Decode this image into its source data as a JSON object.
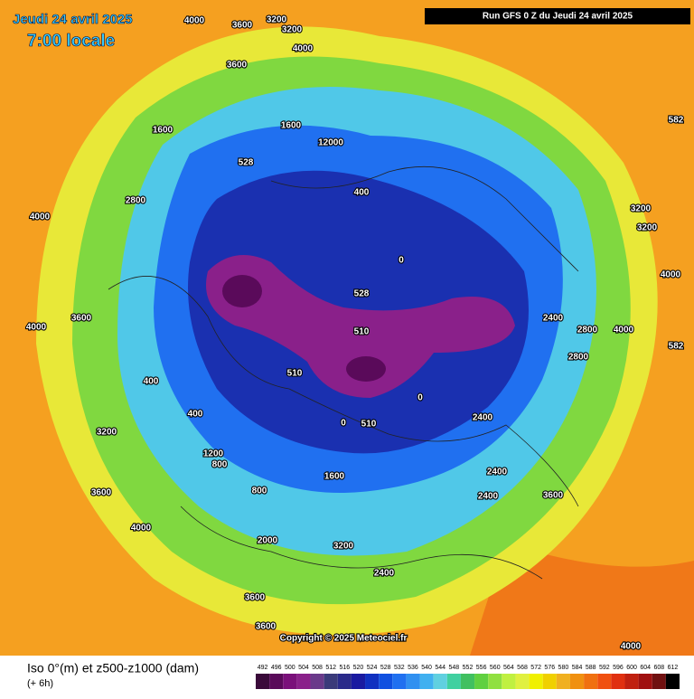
{
  "header": {
    "date": "Jeudi 24 avril 2025",
    "time": "7:00 locale",
    "run": "Run GFS 0 Z du Jeudi 24 avril 2025"
  },
  "footer": {
    "title": "Iso 0°(m) et z500-z1000 (dam)",
    "step": "(+ 6h)",
    "copyright": "Copyright © 2025 Meteociel.fr"
  },
  "legend": {
    "ticks": [
      492,
      496,
      500,
      504,
      508,
      512,
      516,
      520,
      524,
      528,
      532,
      536,
      540,
      544,
      548,
      552,
      556,
      560,
      564,
      568,
      572,
      576,
      580,
      584,
      588,
      592,
      596,
      600,
      604,
      608,
      612
    ],
    "colors": [
      "#3a0a3a",
      "#5a0a5a",
      "#7a107a",
      "#8a208a",
      "#6a3a8a",
      "#3a3a7a",
      "#2a2a8a",
      "#1a1aa0",
      "#1030c0",
      "#1050e0",
      "#2070f0",
      "#3090f0",
      "#40b0f0",
      "#60d0e0",
      "#40d0a0",
      "#40c060",
      "#60d040",
      "#90e040",
      "#c0f040",
      "#e0f040",
      "#f0f000",
      "#f0d000",
      "#f0b020",
      "#f09010",
      "#f07010",
      "#f05010",
      "#e03010",
      "#c02010",
      "#a01010",
      "#701010",
      "#000000"
    ]
  },
  "map_labels": [
    4000,
    3600,
    3200,
    3200,
    4000,
    3600,
    1600,
    1600,
    12000,
    528,
    528,
    510,
    510,
    510,
    0,
    0,
    2800,
    4000,
    4000,
    3600,
    3200,
    3600,
    4000,
    2000,
    3200,
    3600,
    3600,
    4000,
    4000,
    4000,
    2800,
    2800,
    2400,
    2400,
    2400,
    3600,
    1200,
    800,
    800,
    400,
    400,
    400,
    0,
    2400,
    1600,
    2400,
    3200,
    3200,
    582,
    582
  ]
}
